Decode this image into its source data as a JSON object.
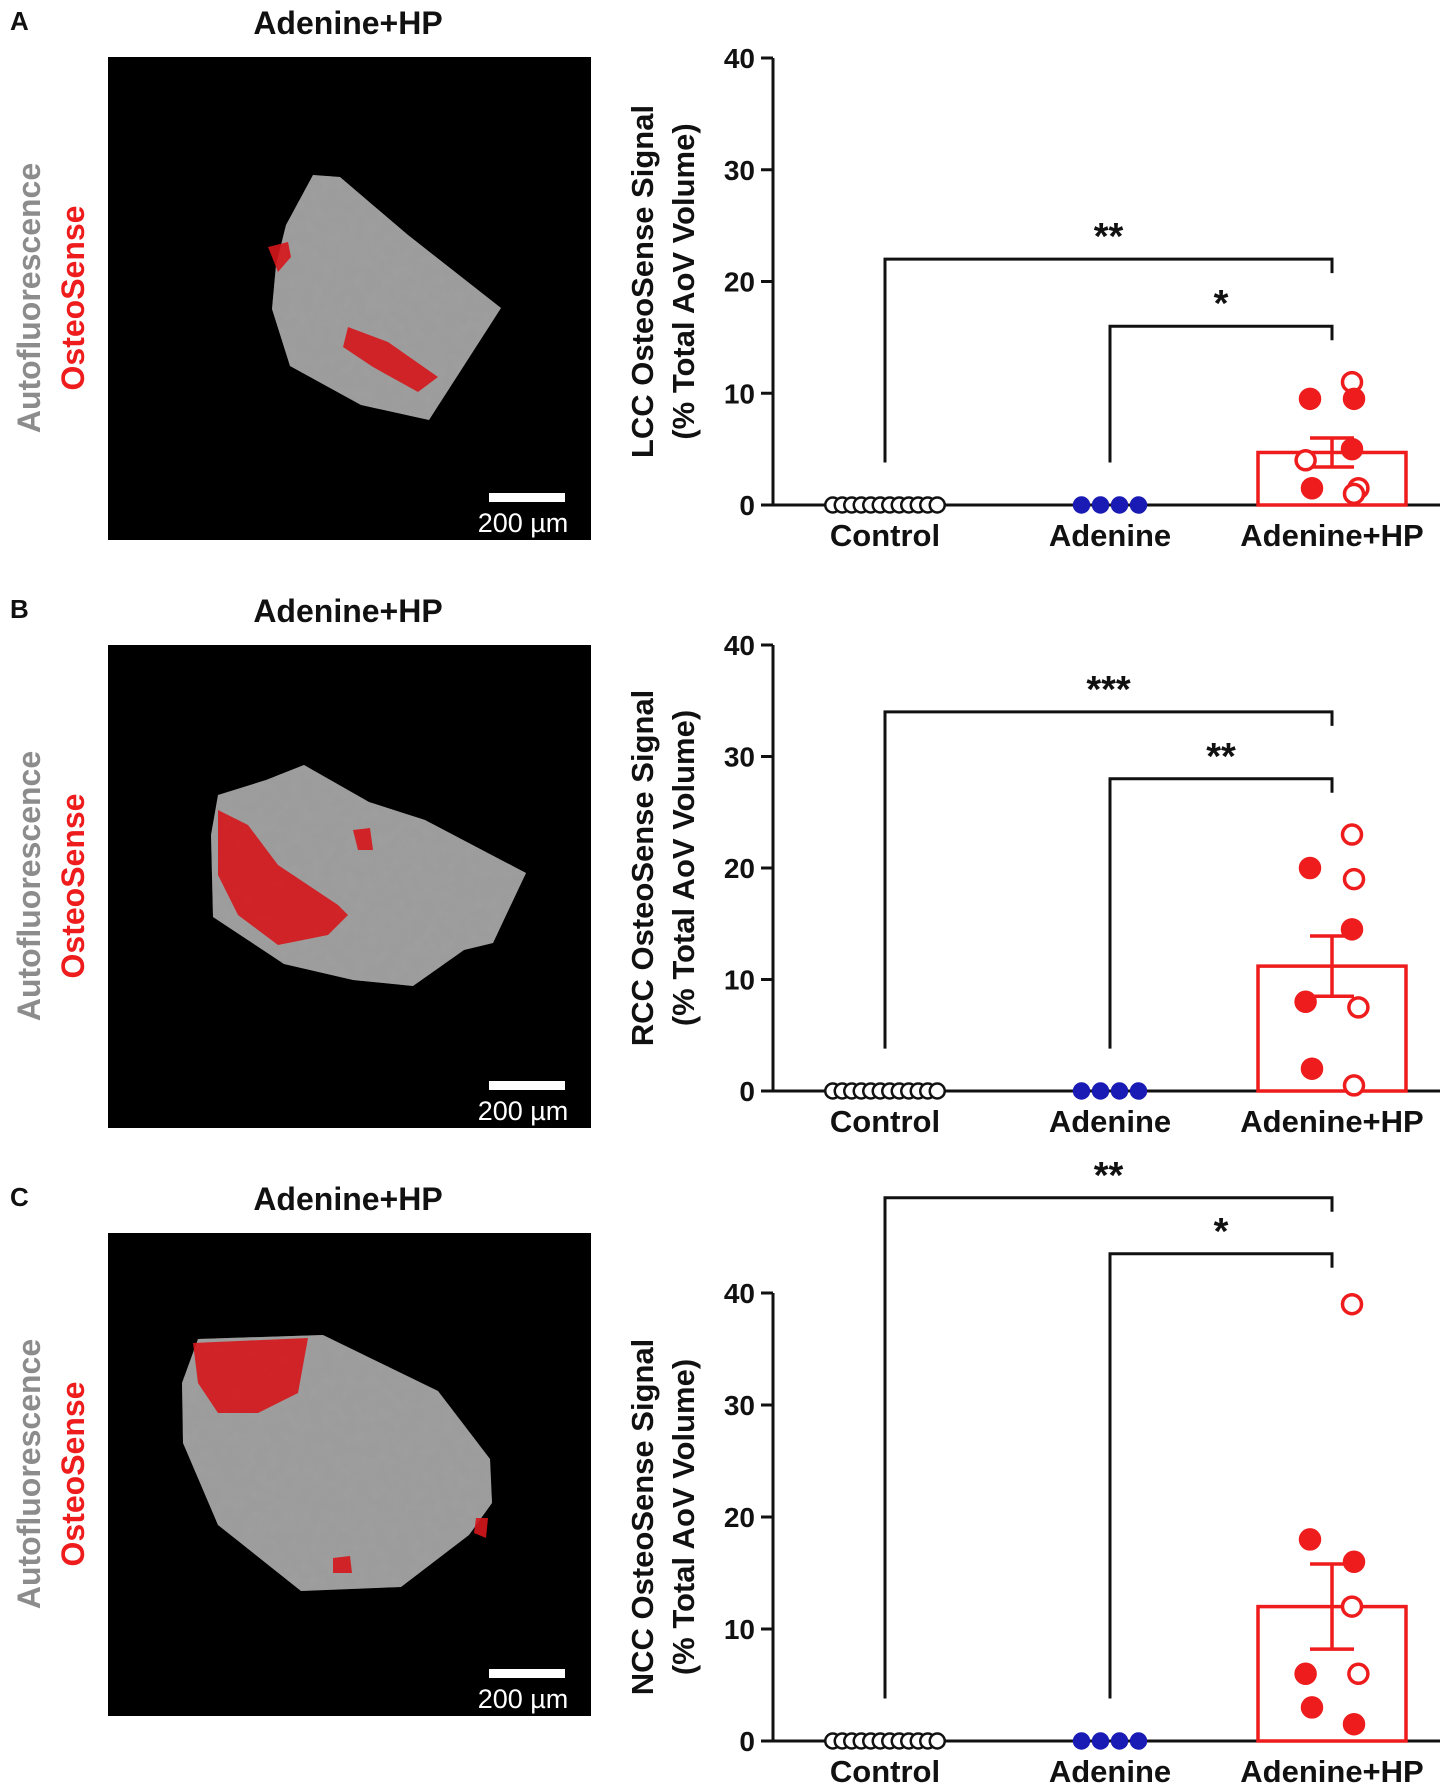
{
  "colors": {
    "black": "#111111",
    "red": "#ee1c1c",
    "blue": "#1a1ab5",
    "grey_label": "#8c8c8c",
    "tissue_red": "#d6161b"
  },
  "panels": [
    {
      "letter": "A",
      "image_title": "Adenine+HP",
      "vertical_label_grey": "Autofluorescence",
      "vertical_label_red": "OsteoSense",
      "scale_bar_label": "200 µm",
      "micrograph_icon": "micrograph-icon"
    },
    {
      "letter": "B",
      "image_title": "Adenine+HP",
      "vertical_label_grey": "Autofluorescence",
      "vertical_label_red": "OsteoSense",
      "scale_bar_label": "200 µm",
      "micrograph_icon": "micrograph-icon"
    },
    {
      "letter": "C",
      "image_title": "Adenine+HP",
      "vertical_label_grey": "Autofluorescence",
      "vertical_label_red": "OsteoSense",
      "scale_bar_label": "200 µm",
      "micrograph_icon": "micrograph-icon"
    }
  ],
  "chart_data": [
    {
      "type": "scatter",
      "panel": "A",
      "ylabel_line1": "LCC OsteoSense Signal",
      "ylabel_line2": "(% Total AoV Volume)",
      "categories": [
        "Control",
        "Adenine",
        "Adenine+HP"
      ],
      "ylim": [
        0,
        40
      ],
      "yticks": [
        0,
        10,
        20,
        30,
        40
      ],
      "groups": [
        {
          "name": "Control",
          "color": "#111111",
          "points": [
            {
              "y": 0,
              "filled": false,
              "n": 12
            }
          ],
          "bar": null,
          "sem": null
        },
        {
          "name": "Adenine",
          "color": "#1a1ab5",
          "points": [
            {
              "y": 0,
              "filled": true,
              "n": 4
            }
          ],
          "bar": null,
          "sem": null
        },
        {
          "name": "Adenine+HP",
          "color": "#ee1c1c",
          "points": [
            {
              "y": 11.0,
              "filled": false
            },
            {
              "y": 9.5,
              "filled": true
            },
            {
              "y": 9.5,
              "filled": true
            },
            {
              "y": 5.0,
              "filled": true
            },
            {
              "y": 4.0,
              "filled": false
            },
            {
              "y": 1.5,
              "filled": false
            },
            {
              "y": 1.5,
              "filled": true
            },
            {
              "y": 1.0,
              "filled": false
            }
          ],
          "bar": 4.7,
          "sem": 1.3
        }
      ],
      "significance": [
        {
          "from": "Control",
          "to": "Adenine+HP",
          "label": "**",
          "y": 22
        },
        {
          "from": "Adenine",
          "to": "Adenine+HP",
          "label": "*",
          "y": 16
        }
      ]
    },
    {
      "type": "scatter",
      "panel": "B",
      "ylabel_line1": "RCC OsteoSense Signal",
      "ylabel_line2": "(% Total AoV Volume)",
      "categories": [
        "Control",
        "Adenine",
        "Adenine+HP"
      ],
      "ylim": [
        0,
        40
      ],
      "yticks": [
        0,
        10,
        20,
        30,
        40
      ],
      "groups": [
        {
          "name": "Control",
          "color": "#111111",
          "points": [
            {
              "y": 0,
              "filled": false,
              "n": 12
            }
          ],
          "bar": null,
          "sem": null
        },
        {
          "name": "Adenine",
          "color": "#1a1ab5",
          "points": [
            {
              "y": 0,
              "filled": true,
              "n": 4
            }
          ],
          "bar": null,
          "sem": null
        },
        {
          "name": "Adenine+HP",
          "color": "#ee1c1c",
          "points": [
            {
              "y": 23.0,
              "filled": false
            },
            {
              "y": 20.0,
              "filled": true
            },
            {
              "y": 19.0,
              "filled": false
            },
            {
              "y": 14.5,
              "filled": true
            },
            {
              "y": 8.0,
              "filled": true
            },
            {
              "y": 7.5,
              "filled": false
            },
            {
              "y": 2.0,
              "filled": true
            },
            {
              "y": 0.5,
              "filled": false
            }
          ],
          "bar": 11.2,
          "sem": 2.7
        }
      ],
      "significance": [
        {
          "from": "Control",
          "to": "Adenine+HP",
          "label": "***",
          "y": 34
        },
        {
          "from": "Adenine",
          "to": "Adenine+HP",
          "label": "**",
          "y": 28
        }
      ]
    },
    {
      "type": "scatter",
      "panel": "C",
      "ylabel_line1": "NCC OsteoSense Signal",
      "ylabel_line2": "(% Total AoV Volume)",
      "categories": [
        "Control",
        "Adenine",
        "Adenine+HP"
      ],
      "ylim": [
        0,
        40
      ],
      "yticks": [
        0,
        10,
        20,
        30,
        40
      ],
      "groups": [
        {
          "name": "Control",
          "color": "#111111",
          "points": [
            {
              "y": 0,
              "filled": false,
              "n": 12
            }
          ],
          "bar": null,
          "sem": null
        },
        {
          "name": "Adenine",
          "color": "#1a1ab5",
          "points": [
            {
              "y": 0,
              "filled": true,
              "n": 4
            }
          ],
          "bar": null,
          "sem": null
        },
        {
          "name": "Adenine+HP",
          "color": "#ee1c1c",
          "points": [
            {
              "y": 39.0,
              "filled": false
            },
            {
              "y": 18.0,
              "filled": true
            },
            {
              "y": 16.0,
              "filled": true
            },
            {
              "y": 12.0,
              "filled": false
            },
            {
              "y": 6.0,
              "filled": true
            },
            {
              "y": 6.0,
              "filled": false
            },
            {
              "y": 3.0,
              "filled": true
            },
            {
              "y": 1.5,
              "filled": true
            }
          ],
          "bar": 12.0,
          "sem": 3.8
        }
      ],
      "significance": [
        {
          "from": "Control",
          "to": "Adenine+HP",
          "label": "**",
          "y": 48.5
        },
        {
          "from": "Adenine",
          "to": "Adenine+HP",
          "label": "*",
          "y": 43.5
        }
      ]
    }
  ]
}
